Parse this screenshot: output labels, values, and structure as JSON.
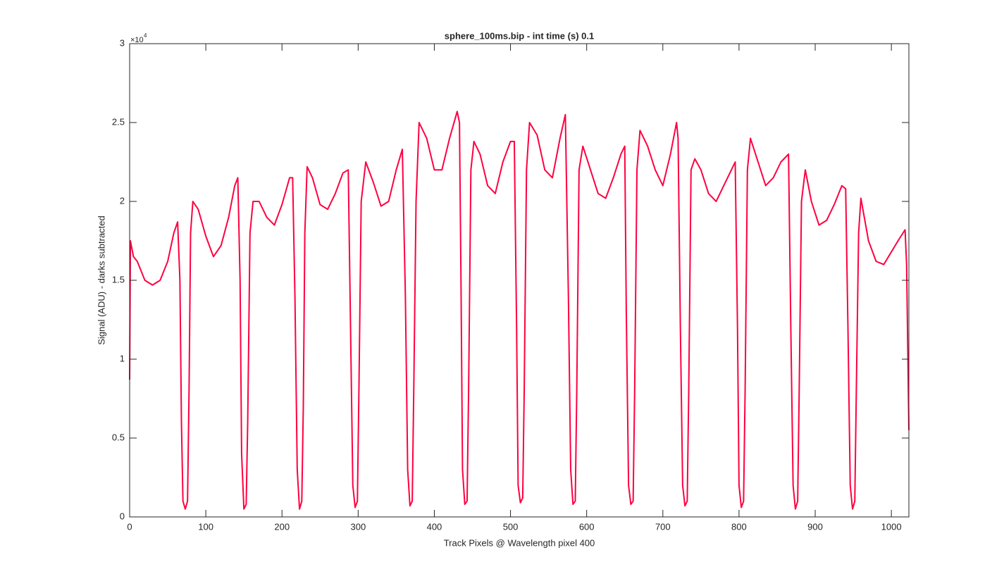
{
  "chart_data": {
    "type": "line",
    "title": "sphere_100ms.bip - int time (s) 0.1",
    "x_label": "Track Pixels @ Wavelength pixel 400",
    "y_label": "Signal (ADU) - darks subtracted",
    "y_scale_label": "×10",
    "y_scale_exponent": "4",
    "color": "#ff0040",
    "xlim": [
      0,
      1023
    ],
    "ylim": [
      0,
      3
    ],
    "xticks": [
      0,
      100,
      200,
      300,
      400,
      500,
      600,
      700,
      800,
      900,
      1000
    ],
    "yticks": [
      0,
      0.5,
      1,
      1.5,
      2,
      2.5,
      3
    ],
    "x": [
      0,
      1,
      5,
      10,
      20,
      30,
      40,
      50,
      58,
      63,
      66,
      68,
      70,
      73,
      76,
      78,
      80,
      83,
      90,
      100,
      110,
      120,
      130,
      138,
      142,
      145,
      147,
      150,
      153,
      155,
      158,
      162,
      170,
      180,
      190,
      200,
      210,
      214,
      217,
      220,
      223,
      226,
      228,
      230,
      233,
      240,
      250,
      260,
      270,
      280,
      287,
      290,
      293,
      296,
      299,
      301,
      304,
      310,
      320,
      330,
      340,
      350,
      358,
      362,
      365,
      368,
      371,
      373,
      376,
      380,
      390,
      400,
      410,
      420,
      430,
      433,
      435,
      437,
      440,
      443,
      445,
      448,
      452,
      460,
      470,
      480,
      490,
      500,
      505,
      508,
      510,
      513,
      516,
      518,
      521,
      525,
      535,
      545,
      555,
      565,
      572,
      576,
      579,
      582,
      585,
      587,
      590,
      595,
      605,
      615,
      625,
      635,
      645,
      650,
      652,
      655,
      658,
      661,
      663,
      666,
      670,
      680,
      690,
      700,
      710,
      718,
      720,
      723,
      726,
      729,
      732,
      734,
      737,
      742,
      750,
      760,
      770,
      780,
      790,
      795,
      798,
      800,
      803,
      806,
      808,
      811,
      815,
      825,
      835,
      845,
      855,
      865,
      868,
      871,
      874,
      877,
      879,
      882,
      887,
      895,
      905,
      915,
      925,
      935,
      940,
      943,
      946,
      949,
      952,
      954,
      957,
      960,
      970,
      980,
      990,
      1000,
      1010,
      1018,
      1020,
      1023
    ],
    "values": [
      0.87,
      1.75,
      1.65,
      1.62,
      1.5,
      1.47,
      1.5,
      1.62,
      1.8,
      1.87,
      1.5,
      0.6,
      0.1,
      0.05,
      0.1,
      0.8,
      1.8,
      2.0,
      1.95,
      1.78,
      1.65,
      1.72,
      1.9,
      2.1,
      2.15,
      1.5,
      0.4,
      0.05,
      0.08,
      0.6,
      1.8,
      2.0,
      2.0,
      1.9,
      1.85,
      1.98,
      2.15,
      2.15,
      1.4,
      0.3,
      0.05,
      0.1,
      0.7,
      1.8,
      2.22,
      2.15,
      1.98,
      1.95,
      2.05,
      2.18,
      2.2,
      1.2,
      0.2,
      0.06,
      0.1,
      0.8,
      2.0,
      2.25,
      2.12,
      1.97,
      2.0,
      2.2,
      2.33,
      1.4,
      0.3,
      0.07,
      0.1,
      0.8,
      2.0,
      2.5,
      2.4,
      2.2,
      2.2,
      2.4,
      2.57,
      2.5,
      1.5,
      0.3,
      0.08,
      0.1,
      0.8,
      2.2,
      2.38,
      2.3,
      2.1,
      2.05,
      2.25,
      2.38,
      2.38,
      1.2,
      0.2,
      0.09,
      0.12,
      0.8,
      2.2,
      2.5,
      2.42,
      2.2,
      2.15,
      2.4,
      2.55,
      1.4,
      0.3,
      0.08,
      0.1,
      0.8,
      2.2,
      2.35,
      2.2,
      2.05,
      2.02,
      2.15,
      2.3,
      2.35,
      1.3,
      0.2,
      0.08,
      0.1,
      0.8,
      2.2,
      2.45,
      2.35,
      2.2,
      2.1,
      2.3,
      2.5,
      2.4,
      1.2,
      0.2,
      0.07,
      0.1,
      0.8,
      2.2,
      2.27,
      2.2,
      2.05,
      2.0,
      2.1,
      2.2,
      2.25,
      1.2,
      0.2,
      0.06,
      0.1,
      0.8,
      2.2,
      2.4,
      2.25,
      2.1,
      2.15,
      2.25,
      2.3,
      1.2,
      0.2,
      0.05,
      0.1,
      0.8,
      2.0,
      2.2,
      2.0,
      1.85,
      1.88,
      1.98,
      2.1,
      2.08,
      1.2,
      0.2,
      0.05,
      0.1,
      0.8,
      1.8,
      2.02,
      1.75,
      1.62,
      1.6,
      1.68,
      1.76,
      1.82,
      1.6,
      0.55
    ]
  }
}
